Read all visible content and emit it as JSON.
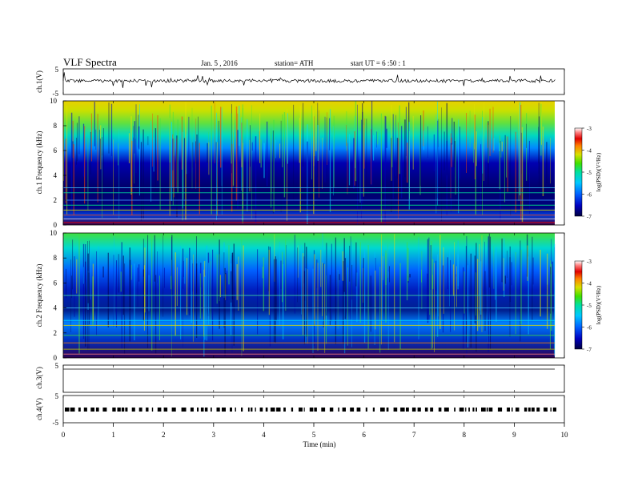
{
  "header": {
    "title": "VLF  Spectra",
    "date": "Jan. 5  , 2016",
    "station": "station= ATH",
    "start": "start  UT  =   6  :50 : 1"
  },
  "chart_data": [
    {
      "type": "line",
      "panel": "ch1-waveform",
      "ylabel": "ch.1(V)",
      "ylim": [
        -5,
        5
      ],
      "yticks": [
        "5",
        "-5"
      ],
      "x_range_min": [
        0,
        9.83
      ]
    },
    {
      "type": "heatmap",
      "panel": "ch1-spectrogram",
      "ylabel": "ch.1 Frequency  (kHz)",
      "ylim": [
        0,
        10
      ],
      "yticks": [
        "0",
        "2",
        "4",
        "6",
        "8",
        "10"
      ],
      "colorbar": {
        "label": "log(PSD)(V²/Hz)",
        "range": [
          -7,
          -3
        ],
        "ticks": [
          "-3",
          "-4",
          "-5",
          "-6",
          "-7"
        ]
      }
    },
    {
      "type": "heatmap",
      "panel": "ch2-spectrogram",
      "ylabel": "ch.2 Frequency  (kHz)",
      "ylim": [
        0,
        10
      ],
      "yticks": [
        "0",
        "2",
        "4",
        "6",
        "8",
        "10"
      ],
      "colorbar": {
        "label": "log(PSD)(V²/Hz)",
        "range": [
          -7,
          -3
        ],
        "ticks": [
          "-3",
          "-4",
          "-5",
          "-6",
          "-7"
        ]
      }
    },
    {
      "type": "line",
      "panel": "ch3-waveform",
      "ylabel": "ch.3(V)",
      "ylim": [
        -5,
        5
      ],
      "yticks": [
        "5"
      ]
    },
    {
      "type": "line",
      "panel": "ch4-waveform",
      "ylabel": "ch.4(V)",
      "ylim": [
        -5,
        5
      ],
      "yticks": [
        "5",
        "-5"
      ]
    }
  ],
  "xaxis": {
    "label": "Time  (min)",
    "range": [
      0,
      10
    ],
    "ticks": [
      "0",
      "1",
      "2",
      "3",
      "4",
      "5",
      "6",
      "7",
      "8",
      "9",
      "10"
    ]
  },
  "colors": {
    "scale": [
      "#000040",
      "#0000c0",
      "#0060ff",
      "#00c8ff",
      "#00e0a0",
      "#40e000",
      "#d8e000",
      "#ff8000",
      "#e00000",
      "#ff8080",
      "#ffffff"
    ]
  }
}
